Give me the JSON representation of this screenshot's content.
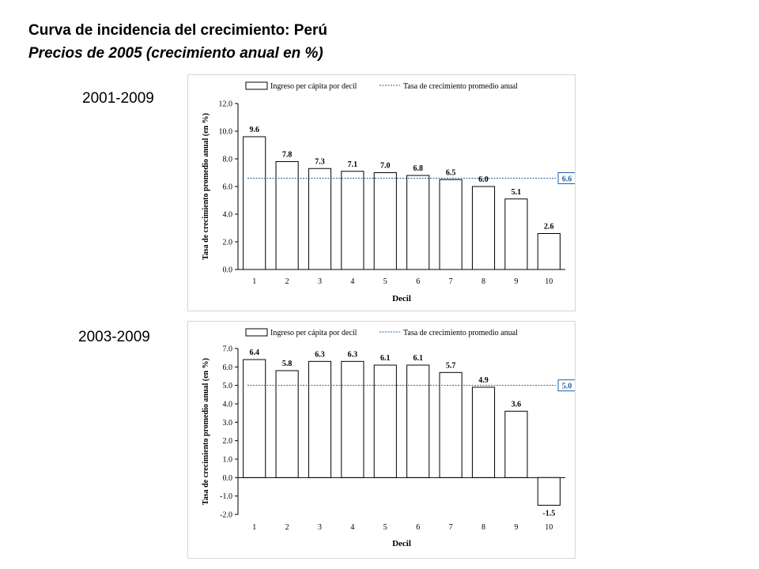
{
  "title": "Curva de incidencia del crecimiento: Perú",
  "subtitle": "Precios de 2005 (crecimiento anual en %)",
  "periods": [
    "2001-2009",
    "2003-2009"
  ],
  "chart_data": [
    {
      "type": "bar",
      "period": "2001-2009",
      "categories": [
        "1",
        "2",
        "3",
        "4",
        "5",
        "6",
        "7",
        "8",
        "9",
        "10"
      ],
      "series": [
        {
          "name": "Ingreso per cápita por decil",
          "values": [
            9.6,
            7.8,
            7.3,
            7.1,
            7.0,
            6.8,
            6.5,
            6.0,
            5.1,
            2.6
          ]
        }
      ],
      "value_labels": [
        "9.6",
        "7.8",
        "7.3",
        "7.1",
        "7.0",
        "6.8",
        "6.5",
        "6.0",
        "5.1",
        "2.6"
      ],
      "reference_line": {
        "name": "Tasa de crecimiento promedio anual",
        "value": 6.6,
        "label": "6.6"
      },
      "xlabel": "Decil",
      "ylabel": "Tasa de crecimiento promedio anual (en %)",
      "ylim": [
        0,
        12
      ],
      "yticks": [
        "0.0",
        "2.0",
        "4.0",
        "6.0",
        "8.0",
        "10.0",
        "12.0"
      ],
      "ytick_values": [
        0,
        2,
        4,
        6,
        8,
        10,
        12
      ],
      "grid": false,
      "legend_position": "top",
      "colors": {
        "bar_fill": "#ffffff",
        "bar_stroke": "#000000",
        "line": "#1f5fa0"
      }
    },
    {
      "type": "bar",
      "period": "2003-2009",
      "categories": [
        "1",
        "2",
        "3",
        "4",
        "5",
        "6",
        "7",
        "8",
        "9",
        "10"
      ],
      "series": [
        {
          "name": "Ingreso per cápita por decil",
          "values": [
            6.4,
            5.8,
            6.3,
            6.3,
            6.1,
            6.1,
            5.7,
            4.9,
            3.6,
            -1.5
          ]
        }
      ],
      "value_labels": [
        "6.4",
        "5.8",
        "6.3",
        "6.3",
        "6.1",
        "6.1",
        "5.7",
        "4.9",
        "3.6",
        "-1.5"
      ],
      "reference_line": {
        "name": "Tasa de crecimiento promedio anual",
        "value": 5.0,
        "label": "5.0"
      },
      "xlabel": "Decil",
      "ylabel": "Tasa de crecimiento promedio anual (en %)",
      "ylim": [
        -2,
        7
      ],
      "yticks": [
        "-2.0",
        "-1.0",
        "0.0",
        "1.0",
        "2.0",
        "3.0",
        "4.0",
        "5.0",
        "6.0",
        "7.0"
      ],
      "ytick_values": [
        -2,
        -1,
        0,
        1,
        2,
        3,
        4,
        5,
        6,
        7
      ],
      "grid": false,
      "legend_position": "top",
      "colors": {
        "bar_fill": "#ffffff",
        "bar_stroke": "#000000",
        "line": "#1f5fa0"
      }
    }
  ]
}
